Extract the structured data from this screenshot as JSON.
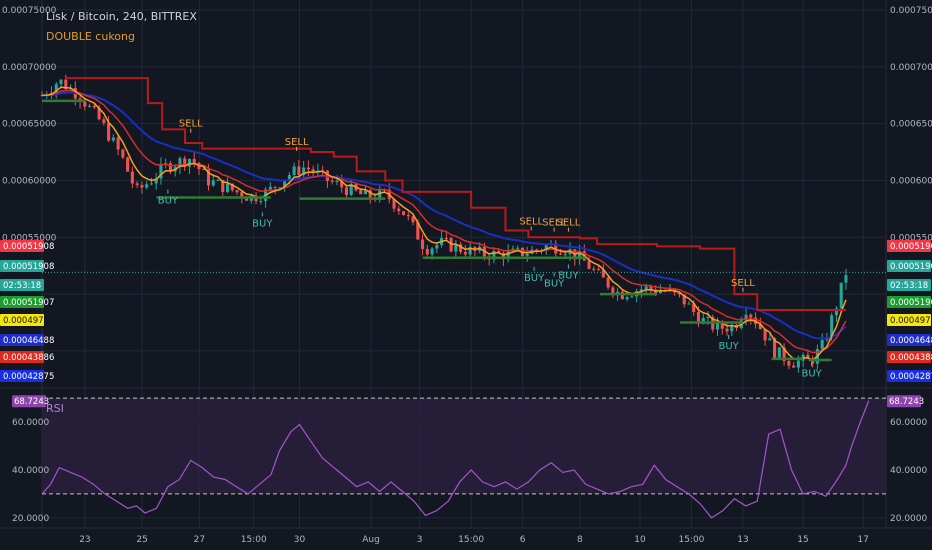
{
  "header": {
    "title": "Lisk / Bitcoin, 240, BITTREX",
    "indicator": "DOUBLE cukong",
    "rsi_label": "RSI"
  },
  "colors": {
    "background": "#131722",
    "grid": "#232838",
    "up": "#26a69a",
    "down": "#ef5350",
    "resistance": "#b71c1c",
    "support": "#2e7d32",
    "slow_ma": "#1a2fbf",
    "fast_ma": "#f59f24",
    "mid_ma": "#d32f2f",
    "rsi": "#a455c9",
    "rsi_band": "#2a1f3d"
  },
  "chart_data": [
    {
      "type": "candlestick",
      "title": "Lisk / Bitcoin, 240, BITTREX",
      "ylim": [
        0.00042,
        0.00075
      ],
      "y_ticks": [
        "0.00075000",
        "0.00070000",
        "0.00065000",
        "0.00060000",
        "0.00055000"
      ],
      "x_ticks": [
        "23",
        "25",
        "27",
        "15:00",
        "30",
        "Aug",
        "3",
        "15:00",
        "6",
        "8",
        "10",
        "15:00",
        "13",
        "15",
        "17"
      ],
      "x_tick_positions": [
        1.5,
        3.5,
        5.5,
        7.4,
        9.0,
        11.5,
        13.2,
        15.0,
        16.8,
        18.8,
        20.9,
        22.7,
        24.5,
        26.6,
        28.7
      ],
      "x_range": [
        0,
        29.5
      ],
      "price_badges": [
        {
          "label": "0.00051908",
          "value": 0.00051908,
          "color": "#f23645"
        },
        {
          "label": "0.00051908",
          "value": 0.00051908,
          "color": "#26a69a"
        },
        {
          "label": "02:53:18",
          "value": null,
          "color": "#26a69a"
        },
        {
          "label": "0.00051907",
          "value": 0.00051907,
          "color": "#1b9e2e"
        },
        {
          "label": "0.00049723",
          "value": 0.00049723,
          "color": "#f5e60c"
        },
        {
          "label": "0.00046488",
          "value": 0.00046488,
          "color": "#1f2ec9"
        },
        {
          "label": "0.00043886",
          "value": 0.00043886,
          "color": "#e0291d"
        },
        {
          "label": "0.00042875",
          "value": 0.00042875,
          "color": "#1830e5"
        }
      ],
      "current_price": 0.00051908,
      "anchors": [
        [
          0.0,
          0.000675
        ],
        [
          0.6,
          0.000688
        ],
        [
          1.3,
          0.000675
        ],
        [
          2.1,
          0.00065
        ],
        [
          2.8,
          0.00062
        ],
        [
          3.3,
          0.00059
        ],
        [
          3.8,
          0.0006
        ],
        [
          4.3,
          0.000612
        ],
        [
          5.2,
          0.00062
        ],
        [
          5.8,
          0.0006
        ],
        [
          6.6,
          0.000592
        ],
        [
          7.3,
          0.000585
        ],
        [
          7.9,
          0.00059
        ],
        [
          8.6,
          0.000605
        ],
        [
          9.2,
          0.000612
        ],
        [
          10.0,
          0.0006
        ],
        [
          10.7,
          0.000592
        ],
        [
          11.4,
          0.000585
        ],
        [
          12.0,
          0.000588
        ],
        [
          12.7,
          0.00057
        ],
        [
          13.4,
          0.00054
        ],
        [
          14.0,
          0.000545
        ],
        [
          14.6,
          0.00054
        ],
        [
          15.5,
          0.000535
        ],
        [
          16.3,
          0.000535
        ],
        [
          17.2,
          0.000538
        ],
        [
          17.7,
          0.000543
        ],
        [
          18.3,
          0.00054
        ],
        [
          18.9,
          0.00053
        ],
        [
          19.5,
          0.000515
        ],
        [
          20.2,
          0.0005
        ],
        [
          21.0,
          0.000505
        ],
        [
          21.8,
          0.000503
        ],
        [
          22.4,
          0.000495
        ],
        [
          23.0,
          0.000478
        ],
        [
          23.6,
          0.00047
        ],
        [
          24.2,
          0.000472
        ],
        [
          24.6,
          0.000488
        ],
        [
          25.0,
          0.000475
        ],
        [
          25.6,
          0.00045
        ],
        [
          26.2,
          0.00044
        ],
        [
          26.9,
          0.000442
        ],
        [
          27.3,
          0.000455
        ],
        [
          27.8,
          0.000493
        ],
        [
          28.1,
          0.000519
        ]
      ],
      "resistance_steps": [
        [
          0.8,
          0.00069
        ],
        [
          3.7,
          0.000668
        ],
        [
          4.2,
          0.000645
        ],
        [
          5.0,
          0.000633
        ],
        [
          5.6,
          0.000628
        ],
        [
          9.4,
          0.000625
        ],
        [
          10.2,
          0.000621
        ],
        [
          11.0,
          0.000608
        ],
        [
          12.0,
          0.0006
        ],
        [
          12.6,
          0.00059
        ],
        [
          13.2,
          0.00059
        ],
        [
          15.0,
          0.000576
        ],
        [
          16.2,
          0.000556
        ],
        [
          17.0,
          0.00055
        ],
        [
          18.8,
          0.000549
        ],
        [
          19.4,
          0.000544
        ],
        [
          21.5,
          0.000542
        ],
        [
          23.0,
          0.00054
        ],
        [
          24.2,
          0.0005
        ],
        [
          25.0,
          0.000486
        ],
        [
          27.5,
          0.000486
        ]
      ],
      "support_segments": [
        [
          0.0,
          1.5,
          0.00067
        ],
        [
          4.0,
          8.0,
          0.000585
        ],
        [
          9.0,
          12.0,
          0.000584
        ],
        [
          13.3,
          19.0,
          0.000532
        ],
        [
          19.5,
          21.5,
          0.0005
        ],
        [
          22.3,
          24.5,
          0.000475
        ],
        [
          25.5,
          26.6,
          0.000443
        ],
        [
          26.8,
          27.6,
          0.000442
        ]
      ],
      "signals": [
        {
          "label": "SELL",
          "type": "sell",
          "x": 5.2,
          "value": 0.000642
        },
        {
          "label": "SELL",
          "type": "sell",
          "x": 8.9,
          "value": 0.000626
        },
        {
          "label": "SELL",
          "type": "sell",
          "x": 17.1,
          "value": 0.000556
        },
        {
          "label": "SELL",
          "type": "sell",
          "x": 17.9,
          "value": 0.000555
        },
        {
          "label": "SELL",
          "type": "sell",
          "x": 18.4,
          "value": 0.000555
        },
        {
          "label": "SELL",
          "type": "sell",
          "x": 24.5,
          "value": 0.000502
        },
        {
          "label": "BUY",
          "type": "buy",
          "x": 4.4,
          "value": 0.000592
        },
        {
          "label": "BUY",
          "type": "buy",
          "x": 7.7,
          "value": 0.000572
        },
        {
          "label": "BUY",
          "type": "buy",
          "x": 17.2,
          "value": 0.000524
        },
        {
          "label": "BUY",
          "type": "buy",
          "x": 17.9,
          "value": 0.000519
        },
        {
          "label": "BUY",
          "type": "buy",
          "x": 18.4,
          "value": 0.000526
        },
        {
          "label": "BUY",
          "type": "buy",
          "x": 24.0,
          "value": 0.000464
        },
        {
          "label": "BUY",
          "type": "buy",
          "x": 26.9,
          "value": 0.00044
        }
      ]
    },
    {
      "type": "line",
      "title": "RSI",
      "ylim": [
        17,
        73
      ],
      "y_ticks": [
        "60.0000",
        "40.0000",
        "20.0000"
      ],
      "y_tick_values": [
        60,
        40,
        20
      ],
      "upper_band": 70,
      "lower_band": 30,
      "current_value": 68.7243,
      "current_label": "68.7243",
      "points": [
        [
          0.0,
          30
        ],
        [
          0.3,
          34
        ],
        [
          0.6,
          41
        ],
        [
          1.0,
          39
        ],
        [
          1.4,
          37
        ],
        [
          1.8,
          34
        ],
        [
          2.2,
          30
        ],
        [
          2.6,
          27
        ],
        [
          3.0,
          24
        ],
        [
          3.3,
          25
        ],
        [
          3.6,
          22
        ],
        [
          4.0,
          24
        ],
        [
          4.4,
          33
        ],
        [
          4.8,
          36
        ],
        [
          5.2,
          44
        ],
        [
          5.6,
          41
        ],
        [
          6.0,
          37
        ],
        [
          6.4,
          36
        ],
        [
          6.8,
          33
        ],
        [
          7.2,
          30
        ],
        [
          7.6,
          34
        ],
        [
          8.0,
          38
        ],
        [
          8.3,
          48
        ],
        [
          8.7,
          56
        ],
        [
          9.0,
          59
        ],
        [
          9.4,
          52
        ],
        [
          9.8,
          45
        ],
        [
          10.2,
          41
        ],
        [
          10.6,
          37
        ],
        [
          11.0,
          33
        ],
        [
          11.4,
          35
        ],
        [
          11.8,
          31
        ],
        [
          12.2,
          35
        ],
        [
          12.6,
          31
        ],
        [
          13.0,
          27
        ],
        [
          13.4,
          21
        ],
        [
          13.8,
          23
        ],
        [
          14.2,
          27
        ],
        [
          14.6,
          35
        ],
        [
          15.0,
          40
        ],
        [
          15.4,
          35
        ],
        [
          15.8,
          33
        ],
        [
          16.2,
          35
        ],
        [
          16.6,
          32
        ],
        [
          17.0,
          35
        ],
        [
          17.4,
          40
        ],
        [
          17.8,
          43
        ],
        [
          18.2,
          39
        ],
        [
          18.6,
          40
        ],
        [
          19.0,
          34
        ],
        [
          19.4,
          32
        ],
        [
          19.8,
          30
        ],
        [
          20.2,
          31
        ],
        [
          20.6,
          33
        ],
        [
          21.0,
          34
        ],
        [
          21.4,
          42
        ],
        [
          21.8,
          36
        ],
        [
          22.2,
          33
        ],
        [
          22.6,
          30
        ],
        [
          23.0,
          26
        ],
        [
          23.4,
          20
        ],
        [
          23.8,
          23
        ],
        [
          24.2,
          28
        ],
        [
          24.6,
          25
        ],
        [
          25.0,
          27
        ],
        [
          25.4,
          55
        ],
        [
          25.8,
          57
        ],
        [
          26.2,
          40
        ],
        [
          26.6,
          30
        ],
        [
          27.0,
          31
        ],
        [
          27.4,
          29
        ],
        [
          27.8,
          36
        ],
        [
          28.1,
          42
        ],
        [
          28.3,
          50
        ],
        [
          28.6,
          60
        ],
        [
          28.9,
          69
        ]
      ]
    }
  ]
}
